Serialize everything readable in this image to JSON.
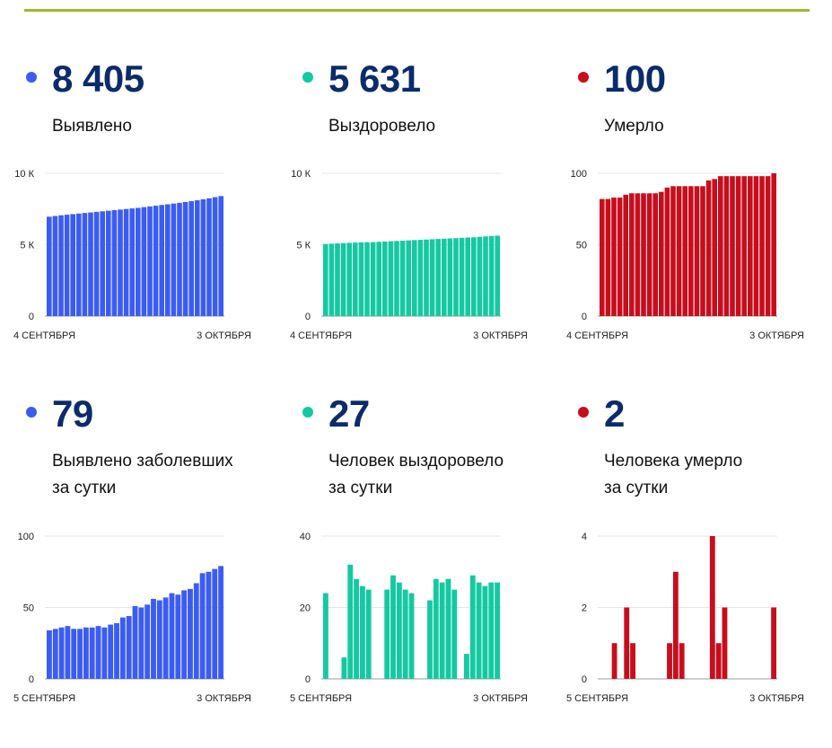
{
  "colors": {
    "blue": "#3b5cf4",
    "green": "#14c9a1",
    "red": "#c80d1c",
    "accent_line": "#9bbb2b",
    "number": "#0b2b6b"
  },
  "cards": [
    {
      "value": "8 405",
      "label_lines": [
        "Выявлено"
      ]
    },
    {
      "value": "5 631",
      "label_lines": [
        "Выздоровело"
      ]
    },
    {
      "value": "100",
      "label_lines": [
        "Умерло"
      ]
    },
    {
      "value": "79",
      "label_lines": [
        "Выявлено заболевших",
        "за сутки"
      ]
    },
    {
      "value": "27",
      "label_lines": [
        "Человек выздоровело",
        "за сутки"
      ]
    },
    {
      "value": "2",
      "label_lines": [
        "Человека умерло",
        "за сутки"
      ]
    }
  ],
  "chart_data": [
    {
      "type": "bar",
      "color": "blue",
      "x_start": "4 СЕНТЯБРЯ",
      "x_end": "3 ОКТЯБРЯ",
      "y_ticks": [
        {
          "v": 0,
          "label": "0"
        },
        {
          "v": 5000,
          "label": "5 К"
        },
        {
          "v": 10000,
          "label": "10 К"
        }
      ],
      "ylim": [
        0,
        10000
      ],
      "values": [
        6960,
        7010,
        7060,
        7100,
        7140,
        7180,
        7220,
        7260,
        7300,
        7340,
        7380,
        7420,
        7460,
        7500,
        7540,
        7580,
        7630,
        7680,
        7730,
        7780,
        7830,
        7880,
        7930,
        7990,
        8050,
        8110,
        8180,
        8250,
        8330,
        8405
      ]
    },
    {
      "type": "bar",
      "color": "green",
      "x_start": "4 СЕНТЯБРЯ",
      "x_end": "3 ОКТЯБРЯ",
      "y_ticks": [
        {
          "v": 0,
          "label": "0"
        },
        {
          "v": 5000,
          "label": "5 К"
        },
        {
          "v": 10000,
          "label": "10 К"
        }
      ],
      "ylim": [
        0,
        10000
      ],
      "values": [
        5050,
        5070,
        5090,
        5110,
        5130,
        5150,
        5160,
        5170,
        5180,
        5200,
        5220,
        5240,
        5260,
        5280,
        5300,
        5320,
        5340,
        5360,
        5380,
        5400,
        5420,
        5440,
        5460,
        5480,
        5500,
        5520,
        5550,
        5580,
        5610,
        5631
      ]
    },
    {
      "type": "bar",
      "color": "red",
      "x_start": "4 СЕНТЯБРЯ",
      "x_end": "3 ОКТЯБРЯ",
      "y_ticks": [
        {
          "v": 0,
          "label": "0"
        },
        {
          "v": 50,
          "label": "50"
        },
        {
          "v": 100,
          "label": "100"
        }
      ],
      "ylim": [
        0,
        100
      ],
      "values": [
        82,
        82,
        83,
        83,
        85,
        86,
        86,
        86,
        86,
        86,
        87,
        90,
        91,
        91,
        91,
        91,
        91,
        91,
        95,
        96,
        98,
        98,
        98,
        98,
        98,
        98,
        98,
        98,
        98,
        100
      ]
    },
    {
      "type": "bar",
      "color": "blue",
      "x_start": "5 СЕНТЯБРЯ",
      "x_end": "3 ОКТЯБРЯ",
      "y_ticks": [
        {
          "v": 0,
          "label": "0"
        },
        {
          "v": 50,
          "label": "50"
        },
        {
          "v": 100,
          "label": "100"
        }
      ],
      "ylim": [
        0,
        100
      ],
      "values": [
        34,
        35,
        36,
        37,
        35,
        35,
        36,
        36,
        37,
        36,
        38,
        39,
        43,
        44,
        51,
        50,
        52,
        56,
        55,
        57,
        60,
        59,
        62,
        63,
        67,
        74,
        75,
        77,
        79
      ]
    },
    {
      "type": "bar",
      "color": "green",
      "x_start": "5 СЕНТЯБРЯ",
      "x_end": "3 ОКТЯБРЯ",
      "y_ticks": [
        {
          "v": 0,
          "label": "0"
        },
        {
          "v": 20,
          "label": "20"
        },
        {
          "v": 40,
          "label": "40"
        }
      ],
      "ylim": [
        0,
        40
      ],
      "values": [
        24,
        0,
        0,
        6,
        32,
        28,
        26,
        25,
        0,
        0,
        25,
        29,
        27,
        25,
        24,
        0,
        0,
        22,
        28,
        27,
        28,
        25,
        0,
        7,
        29,
        27,
        26,
        27,
        27
      ]
    },
    {
      "type": "bar",
      "color": "red",
      "x_start": "5 СЕНТЯБРЯ",
      "x_end": "3 ОКТЯБРЯ",
      "y_ticks": [
        {
          "v": 0,
          "label": "0"
        },
        {
          "v": 2,
          "label": "2"
        },
        {
          "v": 4,
          "label": "4"
        }
      ],
      "ylim": [
        0,
        4
      ],
      "values": [
        0,
        0,
        1,
        0,
        2,
        1,
        0,
        0,
        0,
        0,
        0,
        1,
        3,
        1,
        0,
        0,
        0,
        0,
        4,
        1,
        2,
        0,
        0,
        0,
        0,
        0,
        0,
        0,
        2
      ]
    }
  ]
}
